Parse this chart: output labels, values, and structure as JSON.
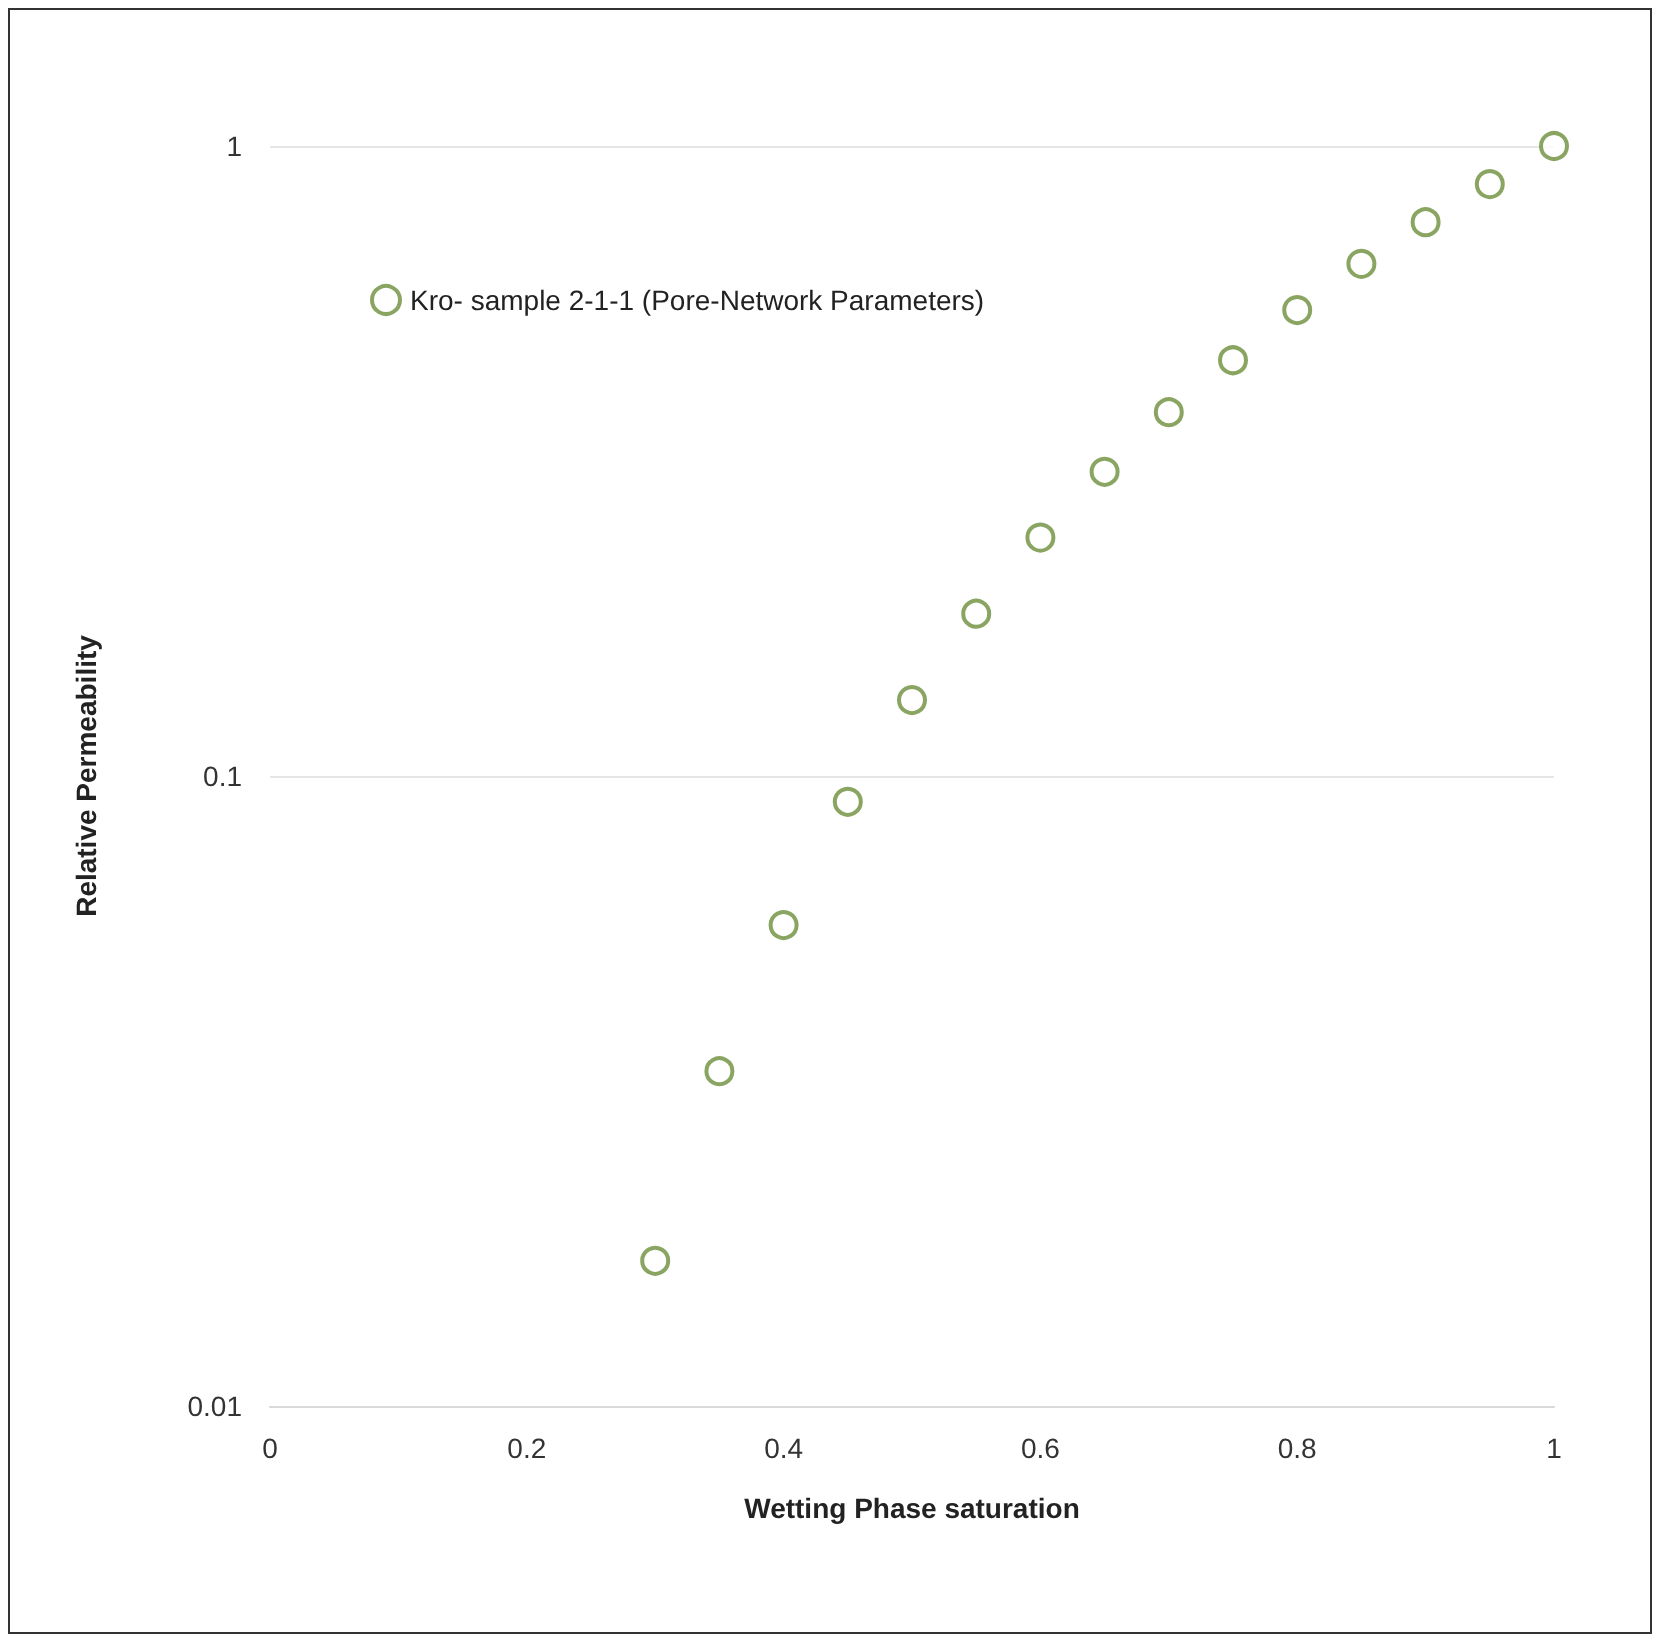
{
  "chart_data": {
    "type": "scatter",
    "xlabel": "Wetting Phase saturation",
    "ylabel": "Relative Permeability",
    "x": [
      0.3,
      0.35,
      0.4,
      0.45,
      0.5,
      0.55,
      0.6,
      0.65,
      0.7,
      0.75,
      0.8,
      0.85,
      0.9,
      0.95,
      1.0
    ],
    "series": [
      {
        "name": "Kro- sample 2-1-1 (Pore-Network Parameters)",
        "color": "#6b8e3a",
        "values": [
          0.017,
          0.034,
          0.058,
          0.091,
          0.132,
          0.181,
          0.239,
          0.304,
          0.378,
          0.457,
          0.549,
          0.65,
          0.757,
          0.87,
          1.0
        ]
      }
    ],
    "xlim": [
      0,
      1
    ],
    "xticks": [
      0,
      0.2,
      0.4,
      0.6,
      0.8,
      1
    ],
    "ylim": [
      0.01,
      1
    ],
    "yticks": [
      0.01,
      0.1,
      1
    ],
    "log": "y",
    "grid": "y",
    "legend": "top left",
    "marker": "circle"
  }
}
